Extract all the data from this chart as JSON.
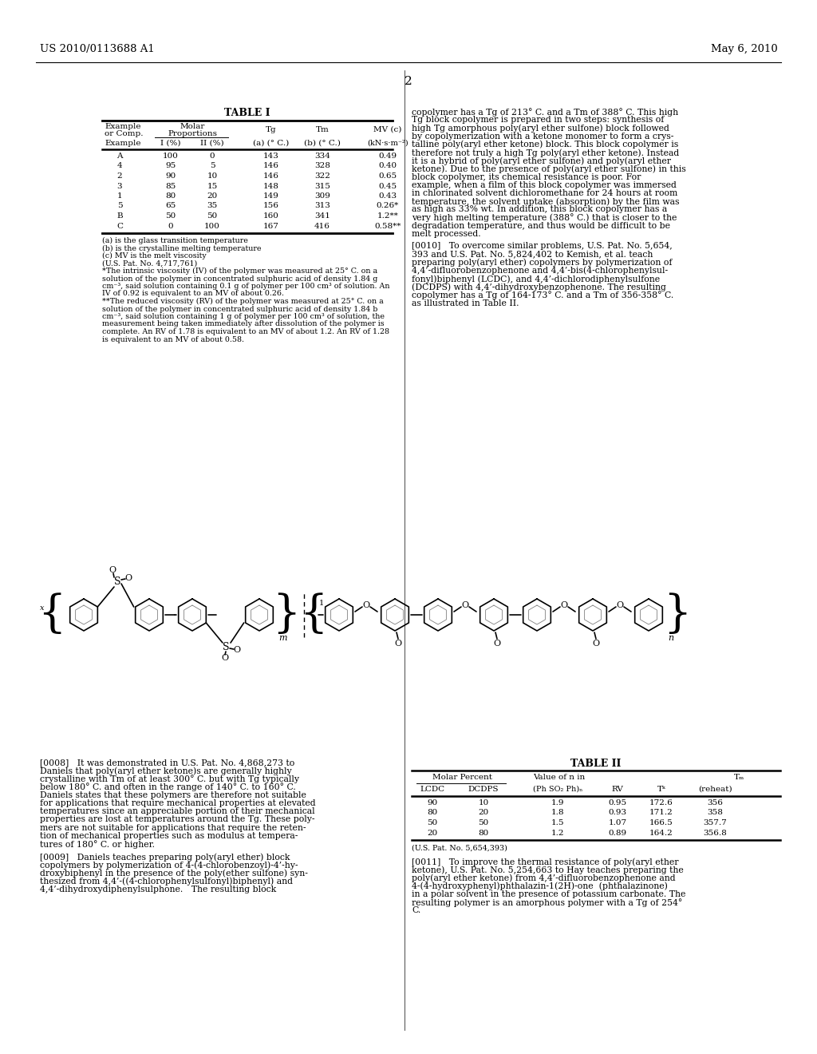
{
  "patent_number": "US 2010/0113688 A1",
  "date": "May 6, 2010",
  "page_number": "2",
  "table1_title": "TABLE I",
  "table1_data": [
    [
      "A",
      "100",
      "0",
      "143",
      "334",
      "0.49"
    ],
    [
      "4",
      "95",
      "5",
      "146",
      "328",
      "0.40"
    ],
    [
      "2",
      "90",
      "10",
      "146",
      "322",
      "0.65"
    ],
    [
      "3",
      "85",
      "15",
      "148",
      "315",
      "0.45"
    ],
    [
      "1",
      "80",
      "20",
      "149",
      "309",
      "0.43"
    ],
    [
      "5",
      "65",
      "35",
      "156",
      "313",
      "0.26*"
    ],
    [
      "B",
      "50",
      "50",
      "160",
      "341",
      "1.2**"
    ],
    [
      "C",
      "0",
      "100",
      "167",
      "416",
      "0.58**"
    ]
  ],
  "table1_footnotes": [
    "(a) is the glass transition temperature",
    "(b) is the crystalline melting temperature",
    "(c) MV is the melt viscosity",
    "(U.S. Pat. No. 4,717,761)",
    "*The intrinsic viscosity (IV) of the polymer was measured at 25° C. on a",
    "solution of the polymer in concentrated sulphuric acid of density 1.84 g",
    "cm⁻³, said solution containing 0.1 g of polymer per 100 cm³ of solution. An",
    "IV of 0.92 is equivalent to an MV of about 0.26.",
    "**The reduced viscosity (RV) of the polymer was measured at 25° C. on a",
    "solution of the polymer in concentrated sulphuric acid of density 1.84 b",
    "cm⁻³, said solution containing 1 g of polymer per 100 cm³ of solution, the",
    "measurement being taken immediately after dissolution of the polymer is",
    "complete. An RV of 1.78 is equivalent to an MV of about 1.2. An RV of 1.28",
    "is equivalent to an MV of about 0.58."
  ],
  "right_col_lines": [
    "copolymer has a Tg of 213° C. and a Tm of 388° C. This high",
    "Tg block copolymer is prepared in two steps: synthesis of",
    "high Tg amorphous poly(aryl ether sulfone) block followed",
    "by copolymerization with a ketone monomer to form a crys-",
    "talline poly(aryl ether ketone) block. This block copolymer is",
    "therefore not truly a high Tg poly(aryl ether ketone). Instead",
    "it is a hybrid of poly(aryl ether sulfone) and poly(aryl ether",
    "ketone). Due to the presence of poly(aryl ether sulfone) in this",
    "block copolymer, its chemical resistance is poor. For",
    "example, when a film of this block copolymer was immersed",
    "in chlorinated solvent dichloromethane for 24 hours at room",
    "temperature, the solvent uptake (absorption) by the film was",
    "as high as 33% wt. In addition, this block copolymer has a",
    "very high melting temperature (388° C.) that is closer to the",
    "degradation temperature, and thus would be difficult to be",
    "melt processed.",
    "",
    "[0010]   To overcome similar problems, U.S. Pat. No. 5,654,",
    "393 and U.S. Pat. No. 5,824,402 to Kemish, et al. teach",
    "preparing poly(aryl ether) copolymers by polymerization of",
    "4,4’-difluorobenzophenone and 4,4’-bis(4-chlorophenylsul-",
    "fonyl)biphenyl (LCDC), and 4,4’-dichlorodiphenylsulfone",
    "(DCDPS) with 4,4’-dihydroxybenzophenone. The resulting",
    "copolymer has a Tg of 164-173° C. and a Tm of 356-358° C.",
    "as illustrated in Table II."
  ],
  "left_bottom_lines_0": [
    "[0008]   It was demonstrated in U.S. Pat. No. 4,868,273 to",
    "Daniels that poly(aryl ether ketone)s are generally highly",
    "crystalline with Tm of at least 300° C. but with Tg typically",
    "below 180° C. and often in the range of 140° C. to 160° C.",
    "Daniels states that these polymers are therefore not suitable",
    "for applications that require mechanical properties at elevated",
    "temperatures since an appreciable portion of their mechanical",
    "properties are lost at temperatures around the Tg. These poly-",
    "mers are not suitable for applications that require the reten-",
    "tion of mechanical properties such as modulus at tempera-",
    "tures of 180° C. or higher."
  ],
  "left_bottom_lines_1": [
    "[0009]   Daniels teaches preparing poly(aryl ether) block",
    "copolymers by polymerization of 4-(4-chlorobenzoyl)-4’-hy-",
    "droxybiphenyl in the presence of the poly(ether sulfone) syn-",
    "thesized from 4,4’-((4-chlorophenylsulfonyl)biphenyl) and",
    "4,4’-dihydroxydiphenylsulphone.   The resulting block"
  ],
  "table2_title": "TABLE II",
  "table2_data": [
    [
      "90",
      "10",
      "1.9",
      "0.95",
      "172.6",
      "356"
    ],
    [
      "80",
      "20",
      "1.8",
      "0.93",
      "171.2",
      "358"
    ],
    [
      "50",
      "50",
      "1.5",
      "1.07",
      "166.5",
      "357.7"
    ],
    [
      "20",
      "80",
      "1.2",
      "0.89",
      "164.2",
      "356.8"
    ]
  ],
  "table2_footnote": "(U.S. Pat. No. 5,654,393)",
  "right_bottom_lines": [
    "[0011]   To improve the thermal resistance of poly(aryl ether",
    "ketone), U.S. Pat. No. 5,254,663 to Hay teaches preparing the",
    "poly(aryl ether ketone) from 4,4’-difluorobenzophenone and",
    "4-(4-hydroxyphenyl)phthalazin-1(2H)-one  (phthalazinone)",
    "in a polar solvent in the presence of potassium carbonate. The",
    "resulting polymer is an amorphous polymer with a Tg of 254°",
    "C."
  ],
  "bg_color": "#ffffff"
}
